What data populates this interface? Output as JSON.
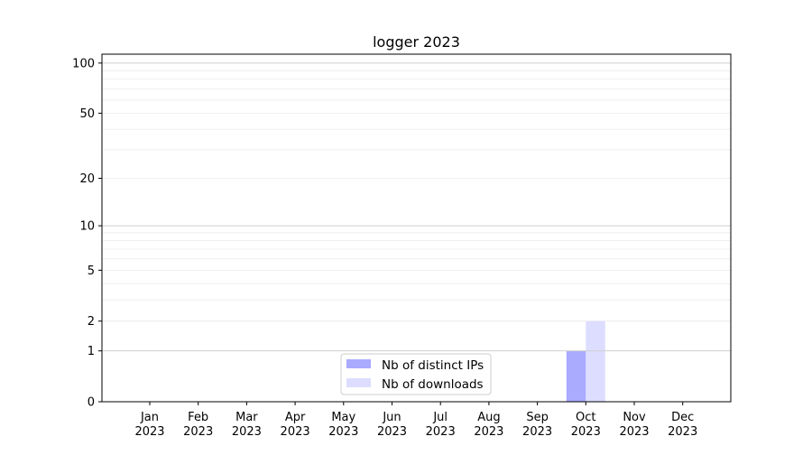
{
  "chart_data": {
    "type": "bar",
    "title": "logger 2023",
    "xlabel": "",
    "ylabel": "",
    "yscale": "log(1+y)",
    "ylim": [
      0,
      113
    ],
    "yticks": [
      0,
      1,
      2,
      5,
      10,
      20,
      50,
      100
    ],
    "grid": true,
    "categories": [
      "Jan\n2023",
      "Feb\n2023",
      "Mar\n2023",
      "Apr\n2023",
      "May\n2023",
      "Jun\n2023",
      "Jul\n2023",
      "Aug\n2023",
      "Sep\n2023",
      "Oct\n2023",
      "Nov\n2023",
      "Dec\n2023"
    ],
    "series": [
      {
        "name": "Nb of distinct IPs",
        "color": "#aaaaff",
        "values": [
          0,
          0,
          0,
          0,
          0,
          0,
          0,
          0,
          0,
          1,
          0,
          0
        ]
      },
      {
        "name": "Nb of downloads",
        "color": "#ddddff",
        "values": [
          0,
          0,
          0,
          0,
          0,
          0,
          0,
          0,
          0,
          2,
          0,
          0
        ]
      }
    ],
    "legend_position": "lower-center"
  }
}
